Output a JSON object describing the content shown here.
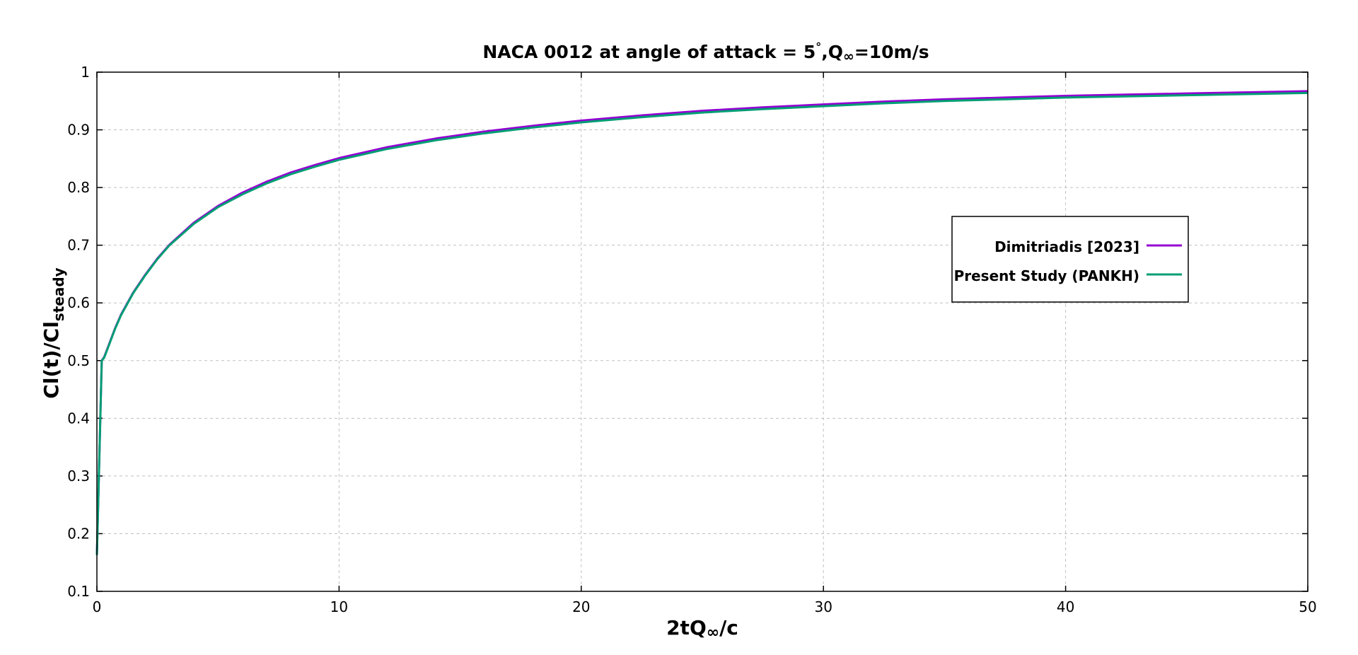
{
  "chart_data": {
    "type": "line",
    "title": {
      "main": "NACA 0012 at angle of attack = 5",
      "degree": "°",
      "sep": ",Q",
      "inf": "∞",
      "rest": "=10m/s"
    },
    "xlabel": {
      "pre": "2tQ",
      "sub": "∞",
      "post": "/c"
    },
    "ylabel": {
      "main": "Cl(t)/Cl",
      "sub": "steady"
    },
    "xlim": [
      0,
      50
    ],
    "ylim": [
      0.1,
      1.0
    ],
    "xticks": [
      0,
      10,
      20,
      30,
      40,
      50
    ],
    "xtick_labels": [
      "0",
      "10",
      "20",
      "30",
      "40",
      "50"
    ],
    "yticks": [
      0.1,
      0.2,
      0.3,
      0.4,
      0.5,
      0.6,
      0.7,
      0.8,
      0.9,
      1.0
    ],
    "ytick_labels": [
      "0.1",
      "0.2",
      "0.3",
      "0.4",
      "0.5",
      "0.6",
      "0.7",
      "0.8",
      "0.9",
      "1"
    ],
    "grid": true,
    "legend_position": "right",
    "series": [
      {
        "name": "Dimitriadis [2023]",
        "color": "#9400d3",
        "x": [
          0,
          0.05,
          0.1,
          0.2,
          0.3,
          0.5,
          0.75,
          1,
          1.5,
          2,
          2.5,
          3,
          4,
          5,
          6,
          7,
          8,
          9,
          10,
          12,
          14,
          16,
          18,
          20,
          22.5,
          25,
          27.5,
          30,
          32.5,
          35,
          37.5,
          40,
          42.5,
          45,
          47.5,
          50
        ],
        "y": [
          0.163,
          0.245,
          0.33,
          0.5,
          0.506,
          0.528,
          0.556,
          0.58,
          0.618,
          0.649,
          0.677,
          0.701,
          0.739,
          0.768,
          0.791,
          0.81,
          0.826,
          0.839,
          0.851,
          0.87,
          0.885,
          0.897,
          0.907,
          0.916,
          0.925,
          0.933,
          0.939,
          0.944,
          0.949,
          0.953,
          0.956,
          0.959,
          0.961,
          0.963,
          0.965,
          0.967
        ]
      },
      {
        "name": "Present Study (PANKH)",
        "color": "#009e73",
        "x": [
          0,
          0.05,
          0.1,
          0.2,
          0.3,
          0.5,
          0.75,
          1,
          1.5,
          2,
          2.5,
          3,
          4,
          5,
          6,
          7,
          8,
          9,
          10,
          12,
          14,
          16,
          18,
          20,
          22.5,
          25,
          27.5,
          30,
          32.5,
          35,
          37.5,
          40,
          42.5,
          45,
          47.5,
          50
        ],
        "y": [
          0.163,
          0.245,
          0.33,
          0.5,
          0.505,
          0.527,
          0.555,
          0.579,
          0.617,
          0.648,
          0.676,
          0.7,
          0.737,
          0.766,
          0.788,
          0.807,
          0.823,
          0.836,
          0.848,
          0.867,
          0.882,
          0.894,
          0.904,
          0.913,
          0.922,
          0.93,
          0.936,
          0.941,
          0.946,
          0.95,
          0.953,
          0.956,
          0.958,
          0.96,
          0.962,
          0.964
        ]
      }
    ]
  }
}
